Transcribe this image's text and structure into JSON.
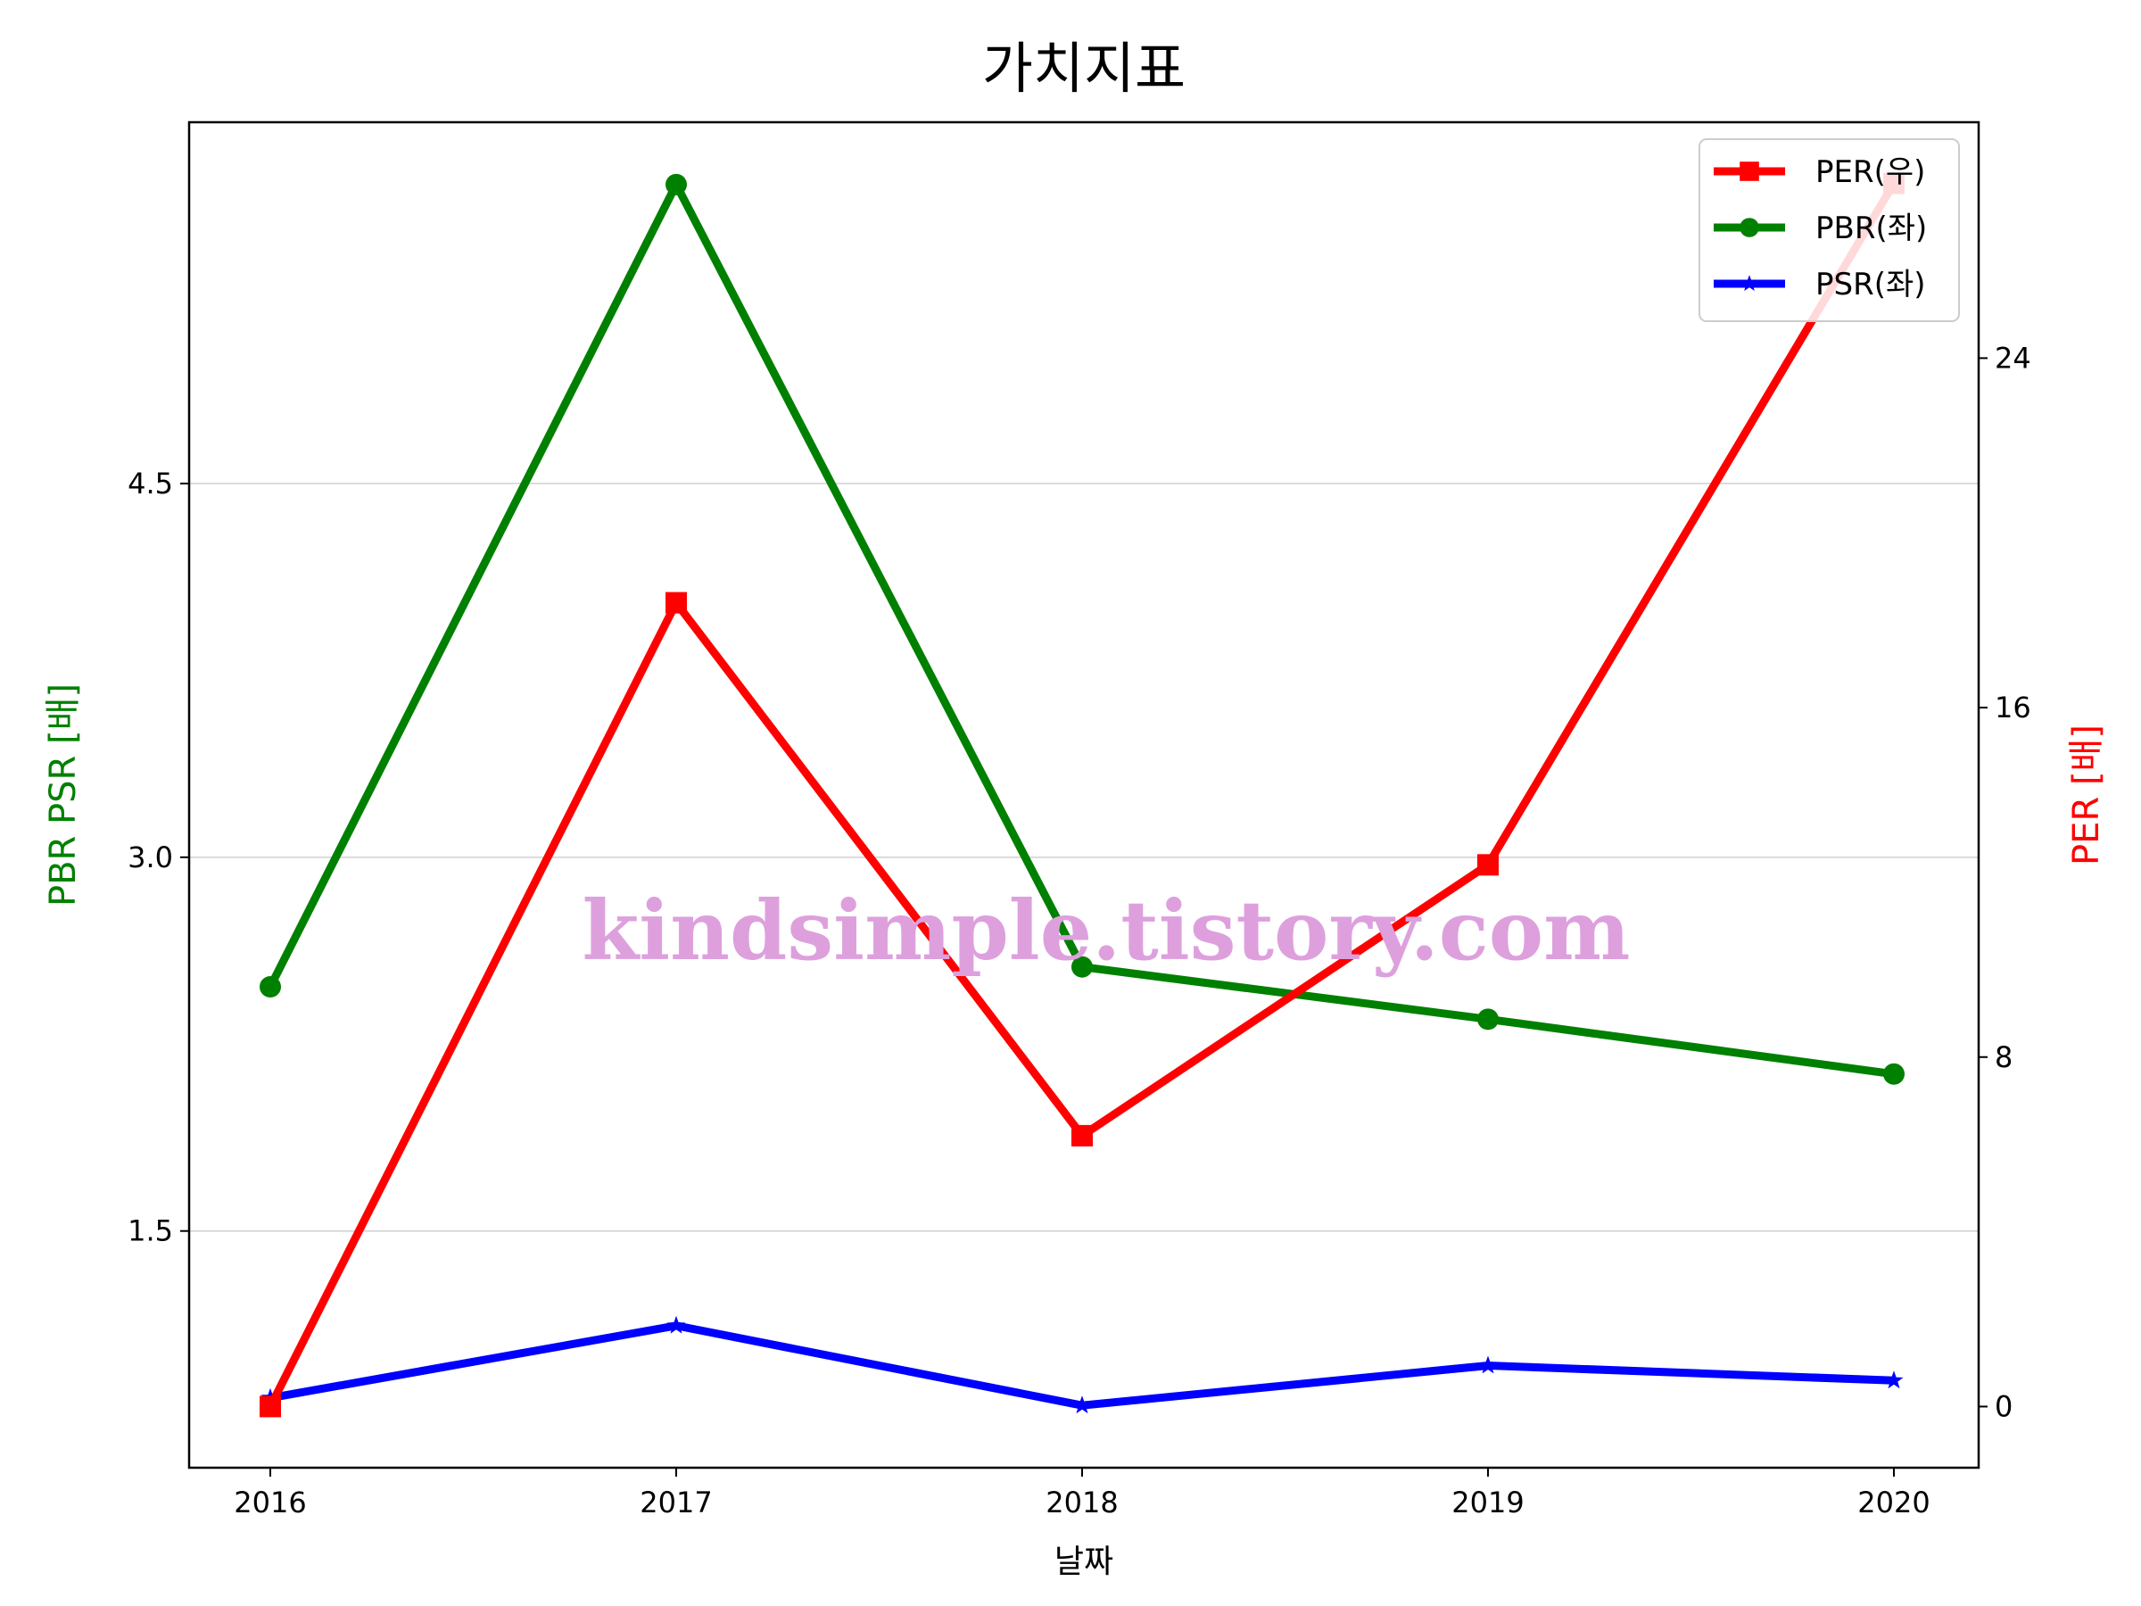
{
  "chart_data": {
    "type": "line",
    "title": "가치지표",
    "xlabel": "날짜",
    "ylabel_left": "PBR PSR [배]",
    "ylabel_right": "PER [배]",
    "categories": [
      "2016",
      "2017",
      "2018",
      "2019",
      "2020"
    ],
    "left_axis": {
      "ticks": [
        1.5,
        3.0,
        4.5
      ],
      "tick_labels": [
        "1.5",
        "3.0",
        "4.5"
      ],
      "ylim": [
        0.55,
        5.95
      ]
    },
    "right_axis": {
      "ticks": [
        0,
        8,
        16,
        24
      ],
      "tick_labels": [
        "0",
        "8",
        "16",
        "24"
      ],
      "ylim": [
        -1.4,
        29.4
      ]
    },
    "grid": "horizontal-left",
    "legend_position": "top-right",
    "series": [
      {
        "name": "PER(우)",
        "axis": "right",
        "marker": "square",
        "color": "#ff0000",
        "values": [
          0.0,
          18.4,
          6.2,
          12.4,
          28.0
        ]
      },
      {
        "name": "PBR(좌)",
        "axis": "left",
        "marker": "circle",
        "color": "#008000",
        "values": [
          2.48,
          5.7,
          2.56,
          2.35,
          2.13
        ]
      },
      {
        "name": "PSR(좌)",
        "axis": "left",
        "marker": "star",
        "color": "#0000ff",
        "values": [
          0.83,
          1.12,
          0.8,
          0.96,
          0.9
        ]
      }
    ]
  },
  "watermark": {
    "text": "kindsimple.tistory.com",
    "color": "#dda0dd"
  }
}
